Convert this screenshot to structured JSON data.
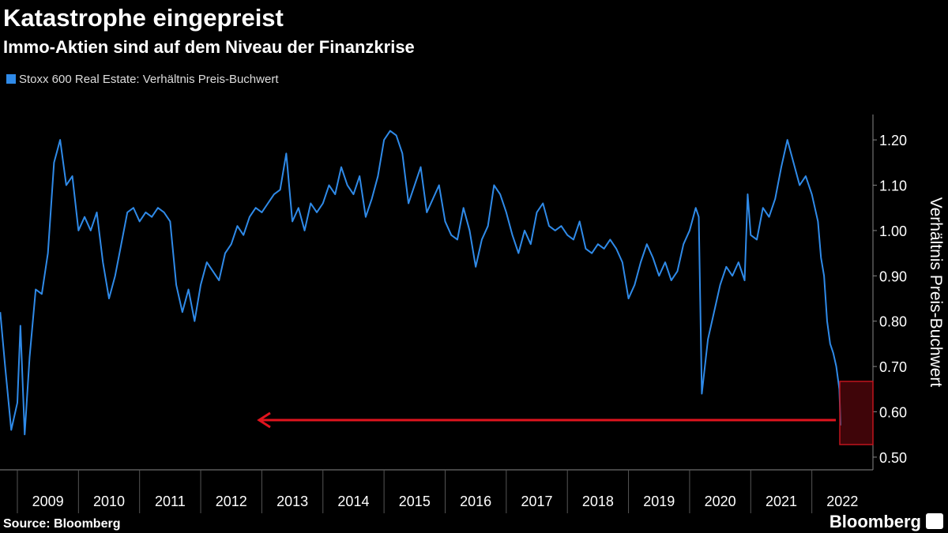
{
  "chart_data": {
    "type": "line",
    "title": "Katastrophe eingepreist",
    "subtitle": "Immo-Aktien sind auf dem Niveau der Finanzkrise",
    "y_axis_label": "Verhältnis Preis-Buchwert",
    "source": "Source: Bloomberg",
    "logo": "Bloomberg",
    "x": [
      2008.72,
      2008.8,
      2008.9,
      2009.0,
      2009.05,
      2009.12,
      2009.2,
      2009.3,
      2009.4,
      2009.5,
      2009.6,
      2009.7,
      2009.8,
      2009.9,
      2010.0,
      2010.1,
      2010.2,
      2010.3,
      2010.4,
      2010.5,
      2010.6,
      2010.7,
      2010.8,
      2010.9,
      2011.0,
      2011.1,
      2011.2,
      2011.3,
      2011.4,
      2011.5,
      2011.6,
      2011.7,
      2011.8,
      2011.9,
      2012.0,
      2012.1,
      2012.2,
      2012.3,
      2012.4,
      2012.5,
      2012.6,
      2012.7,
      2012.8,
      2012.9,
      2013.0,
      2013.1,
      2013.2,
      2013.3,
      2013.4,
      2013.5,
      2013.6,
      2013.7,
      2013.8,
      2013.9,
      2014.0,
      2014.1,
      2014.2,
      2014.3,
      2014.4,
      2014.5,
      2014.6,
      2014.7,
      2014.8,
      2014.9,
      2015.0,
      2015.1,
      2015.2,
      2015.3,
      2015.4,
      2015.5,
      2015.6,
      2015.7,
      2015.8,
      2015.9,
      2016.0,
      2016.1,
      2016.2,
      2016.3,
      2016.4,
      2016.5,
      2016.6,
      2016.7,
      2016.8,
      2016.9,
      2017.0,
      2017.1,
      2017.2,
      2017.3,
      2017.4,
      2017.5,
      2017.6,
      2017.7,
      2017.8,
      2017.9,
      2018.0,
      2018.1,
      2018.2,
      2018.3,
      2018.4,
      2018.5,
      2018.6,
      2018.7,
      2018.8,
      2018.9,
      2019.0,
      2019.1,
      2019.2,
      2019.3,
      2019.4,
      2019.5,
      2019.6,
      2019.7,
      2019.8,
      2019.9,
      2020.0,
      2020.1,
      2020.15,
      2020.2,
      2020.3,
      2020.4,
      2020.5,
      2020.6,
      2020.7,
      2020.8,
      2020.9,
      2020.95,
      2021.0,
      2021.1,
      2021.2,
      2021.3,
      2021.4,
      2021.5,
      2021.6,
      2021.7,
      2021.8,
      2021.9,
      2022.0,
      2022.1,
      2022.15,
      2022.2,
      2022.25,
      2022.3,
      2022.35,
      2022.4,
      2022.45,
      2022.47
    ],
    "series": [
      {
        "name": "Stoxx 600 Real Estate: Verhältnis Preis-Buchwert",
        "color": "#2f8ae8",
        "values": [
          0.82,
          0.7,
          0.56,
          0.62,
          0.79,
          0.55,
          0.72,
          0.87,
          0.86,
          0.95,
          1.15,
          1.2,
          1.1,
          1.12,
          1.0,
          1.03,
          1.0,
          1.04,
          0.93,
          0.85,
          0.9,
          0.97,
          1.04,
          1.05,
          1.02,
          1.04,
          1.03,
          1.05,
          1.04,
          1.02,
          0.88,
          0.82,
          0.87,
          0.8,
          0.88,
          0.93,
          0.91,
          0.89,
          0.95,
          0.97,
          1.01,
          0.99,
          1.03,
          1.05,
          1.04,
          1.06,
          1.08,
          1.09,
          1.17,
          1.02,
          1.05,
          1.0,
          1.06,
          1.04,
          1.06,
          1.1,
          1.08,
          1.14,
          1.1,
          1.08,
          1.12,
          1.03,
          1.07,
          1.12,
          1.2,
          1.22,
          1.21,
          1.17,
          1.06,
          1.1,
          1.14,
          1.04,
          1.07,
          1.1,
          1.02,
          0.99,
          0.98,
          1.05,
          1.0,
          0.92,
          0.98,
          1.01,
          1.1,
          1.08,
          1.04,
          0.99,
          0.95,
          1.0,
          0.97,
          1.04,
          1.06,
          1.01,
          1.0,
          1.01,
          0.99,
          0.98,
          1.02,
          0.96,
          0.95,
          0.97,
          0.96,
          0.98,
          0.96,
          0.93,
          0.85,
          0.88,
          0.93,
          0.97,
          0.94,
          0.9,
          0.93,
          0.89,
          0.91,
          0.97,
          1.0,
          1.05,
          1.03,
          0.64,
          0.76,
          0.82,
          0.88,
          0.92,
          0.9,
          0.93,
          0.89,
          1.08,
          0.99,
          0.98,
          1.05,
          1.03,
          1.07,
          1.14,
          1.2,
          1.15,
          1.1,
          1.12,
          1.08,
          1.02,
          0.94,
          0.9,
          0.8,
          0.75,
          0.73,
          0.7,
          0.65,
          0.57
        ]
      }
    ],
    "xlim": [
      2008.716,
      2023
    ],
    "xticks": [
      2009,
      2010,
      2011,
      2012,
      2013,
      2014,
      2015,
      2016,
      2017,
      2018,
      2019,
      2020,
      2021,
      2022
    ],
    "ylim": [
      0.472,
      1.256
    ],
    "yticks": [
      {
        "value": 0.5,
        "label": "0.50"
      },
      {
        "value": 0.6,
        "label": "0.60"
      },
      {
        "value": 0.7,
        "label": "0.70"
      },
      {
        "value": 0.8,
        "label": "0.80"
      },
      {
        "value": 0.9,
        "label": "0.90"
      },
      {
        "value": 1.0,
        "label": "1.00"
      },
      {
        "value": 1.1,
        "label": "1.10"
      },
      {
        "value": 1.2,
        "label": "1.20"
      }
    ]
  }
}
